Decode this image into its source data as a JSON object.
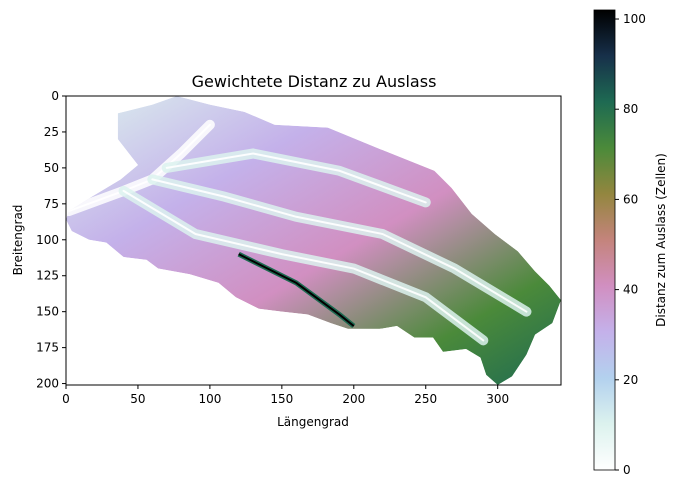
{
  "chart_data": {
    "type": "heatmap",
    "title": "Gewichtete Distanz zu Auslass",
    "xlabel": "Längengrad",
    "ylabel": "Breitengrad",
    "xlim": [
      0,
      344
    ],
    "ylim": [
      201,
      0
    ],
    "xticks": [
      "0",
      "50",
      "100",
      "150",
      "200",
      "250",
      "300"
    ],
    "yticks": [
      "0",
      "25",
      "50",
      "75",
      "100",
      "125",
      "150",
      "175",
      "200"
    ],
    "colorbar": {
      "label": "Distanz zum Auslass (Zellen)",
      "range": [
        0,
        102
      ],
      "ticks": [
        "0",
        "20",
        "40",
        "60",
        "80",
        "100"
      ],
      "colormap": "cubehelix_r",
      "stops": [
        {
          "v": 0,
          "color": "#ffffff"
        },
        {
          "v": 0.1,
          "color": "#dcf2ee"
        },
        {
          "v": 0.2,
          "color": "#b3d1ee"
        },
        {
          "v": 0.3,
          "color": "#c4b1ea"
        },
        {
          "v": 0.4,
          "color": "#d18fc1"
        },
        {
          "v": 0.5,
          "color": "#c4847c"
        },
        {
          "v": 0.6,
          "color": "#93863f"
        },
        {
          "v": 0.7,
          "color": "#4b8a3a"
        },
        {
          "v": 0.8,
          "color": "#1e6a52"
        },
        {
          "v": 0.9,
          "color": "#17304a"
        },
        {
          "v": 1,
          "color": "#000000"
        }
      ]
    },
    "basin_outline": [
      [
        2,
        80
      ],
      [
        18,
        70
      ],
      [
        38,
        58
      ],
      [
        50,
        48
      ],
      [
        36,
        30
      ],
      [
        36,
        12
      ],
      [
        60,
        6
      ],
      [
        77,
        0
      ],
      [
        100,
        6
      ],
      [
        124,
        11
      ],
      [
        145,
        20
      ],
      [
        182,
        22
      ],
      [
        216,
        36
      ],
      [
        256,
        52
      ],
      [
        268,
        64
      ],
      [
        282,
        82
      ],
      [
        298,
        96
      ],
      [
        314,
        108
      ],
      [
        326,
        122
      ],
      [
        336,
        132
      ],
      [
        344,
        142
      ],
      [
        338,
        158
      ],
      [
        326,
        166
      ],
      [
        320,
        180
      ],
      [
        310,
        195
      ],
      [
        300,
        201
      ],
      [
        292,
        194
      ],
      [
        288,
        182
      ],
      [
        278,
        176
      ],
      [
        262,
        178
      ],
      [
        255,
        168
      ],
      [
        242,
        168
      ],
      [
        230,
        160
      ],
      [
        218,
        162
      ],
      [
        196,
        162
      ],
      [
        184,
        158
      ],
      [
        168,
        152
      ],
      [
        150,
        150
      ],
      [
        134,
        148
      ],
      [
        118,
        140
      ],
      [
        106,
        130
      ],
      [
        86,
        124
      ],
      [
        64,
        120
      ],
      [
        56,
        114
      ],
      [
        40,
        112
      ],
      [
        28,
        102
      ],
      [
        16,
        100
      ],
      [
        4,
        94
      ],
      [
        0,
        86
      ]
    ],
    "streams": [
      {
        "points": [
          [
            2,
            80
          ],
          [
            40,
            66
          ],
          [
            60,
            58
          ],
          [
            80,
            40
          ],
          [
            100,
            20
          ]
        ],
        "level": 0.08
      },
      {
        "points": [
          [
            60,
            58
          ],
          [
            110,
            70
          ],
          [
            160,
            84
          ],
          [
            220,
            96
          ],
          [
            270,
            120
          ],
          [
            320,
            150
          ]
        ],
        "level": 0.15
      },
      {
        "points": [
          [
            40,
            66
          ],
          [
            90,
            96
          ],
          [
            150,
            110
          ],
          [
            200,
            120
          ],
          [
            250,
            140
          ],
          [
            290,
            170
          ]
        ],
        "level": 0.18
      },
      {
        "points": [
          [
            70,
            50
          ],
          [
            130,
            40
          ],
          [
            190,
            52
          ],
          [
            250,
            74
          ]
        ],
        "level": 0.2
      }
    ],
    "outlet_far": {
      "points": [
        [
          120,
          110
        ],
        [
          160,
          130
        ],
        [
          190,
          152
        ],
        [
          200,
          160
        ]
      ],
      "value": 100
    }
  }
}
